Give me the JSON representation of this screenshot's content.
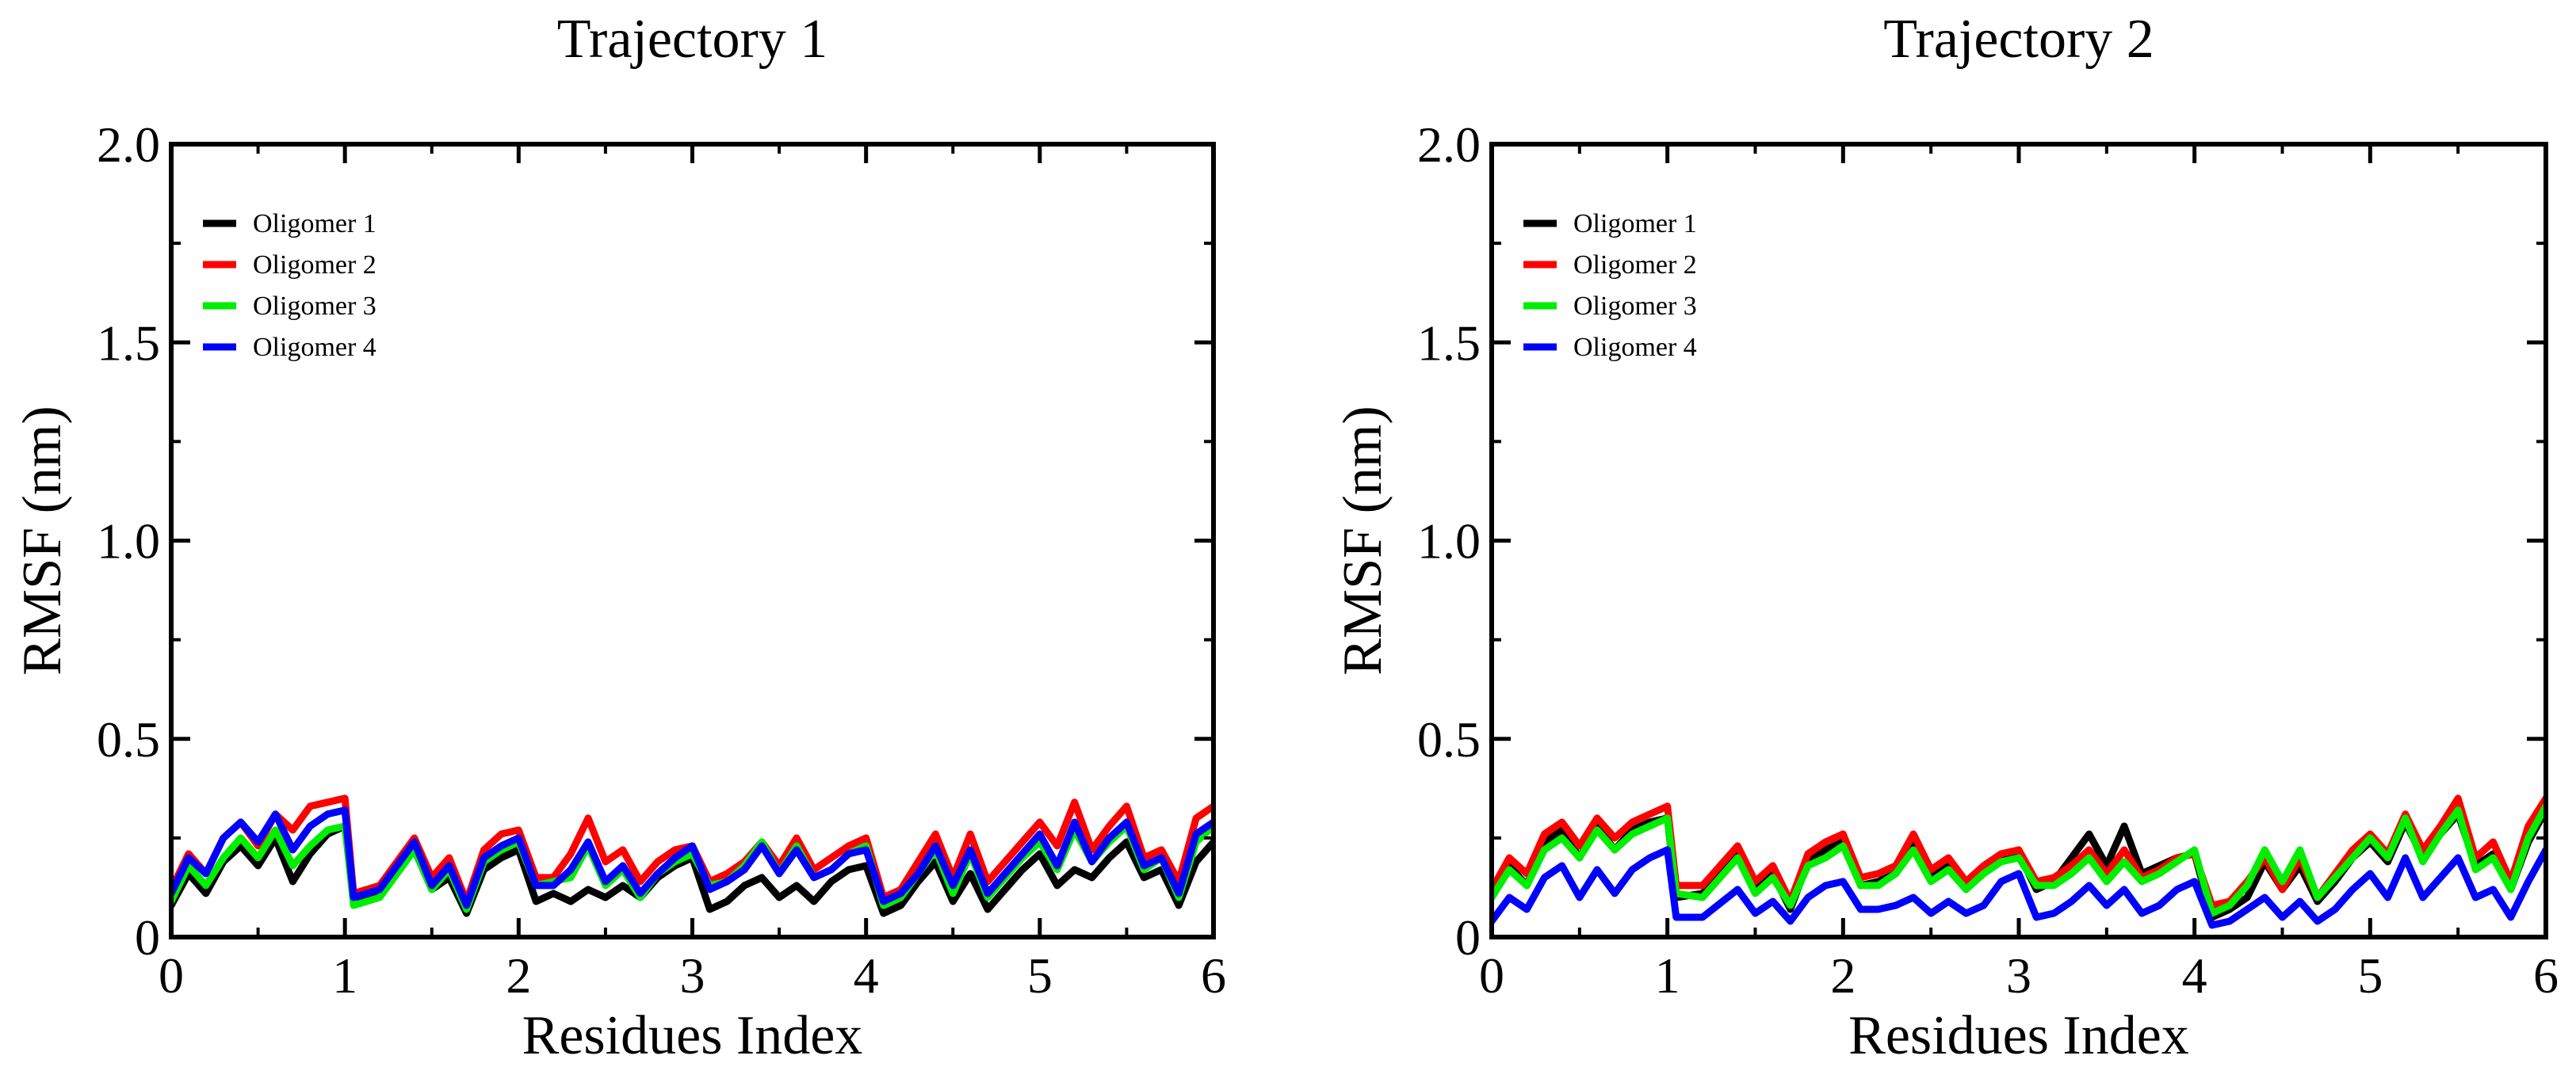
{
  "chart_data": [
    {
      "type": "line",
      "title": "Trajectory 1",
      "xlabel": "Residues Index",
      "ylabel": "RMSF (nm)",
      "xlim": [
        0,
        6
      ],
      "ylim": [
        0,
        2
      ],
      "x_ticks": [
        0,
        1,
        2,
        3,
        4,
        5,
        6
      ],
      "y_ticks": [
        0,
        0.5,
        1.0,
        1.5,
        2.0
      ],
      "x_tick_labels": [
        "0",
        "1",
        "2",
        "3",
        "4",
        "5",
        "6"
      ],
      "y_tick_labels": [
        "0",
        "0.5",
        "1.0",
        "1.5",
        "2.0"
      ],
      "legend_position": "top-left",
      "series": [
        {
          "name": "Oligomer 1",
          "color": "#000000",
          "x": [
            0,
            0.1,
            0.2,
            0.3,
            0.4,
            0.5,
            0.6,
            0.7,
            0.8,
            0.9,
            1.0,
            1.05,
            1.2,
            1.4,
            1.5,
            1.6,
            1.7,
            1.8,
            1.9,
            2.0,
            2.1,
            2.2,
            2.3,
            2.4,
            2.5,
            2.6,
            2.7,
            2.8,
            2.9,
            3.0,
            3.1,
            3.2,
            3.3,
            3.4,
            3.5,
            3.6,
            3.7,
            3.8,
            3.9,
            4.0,
            4.1,
            4.2,
            4.3,
            4.4,
            4.5,
            4.6,
            4.7,
            4.8,
            4.9,
            5.0,
            5.1,
            5.2,
            5.3,
            5.4,
            5.5,
            5.6,
            5.7,
            5.8,
            5.9,
            6.0
          ],
          "values": [
            0.08,
            0.16,
            0.11,
            0.19,
            0.23,
            0.18,
            0.25,
            0.14,
            0.21,
            0.26,
            0.28,
            0.09,
            0.11,
            0.22,
            0.12,
            0.15,
            0.06,
            0.17,
            0.2,
            0.22,
            0.09,
            0.11,
            0.09,
            0.12,
            0.1,
            0.13,
            0.1,
            0.15,
            0.18,
            0.2,
            0.07,
            0.09,
            0.13,
            0.15,
            0.1,
            0.13,
            0.09,
            0.14,
            0.17,
            0.18,
            0.06,
            0.08,
            0.14,
            0.19,
            0.09,
            0.16,
            0.07,
            0.12,
            0.17,
            0.21,
            0.13,
            0.17,
            0.15,
            0.2,
            0.24,
            0.15,
            0.17,
            0.08,
            0.19,
            0.24
          ]
        },
        {
          "name": "Oligomer 2",
          "color": "#ff0000",
          "x": [
            0,
            0.1,
            0.2,
            0.3,
            0.4,
            0.5,
            0.6,
            0.7,
            0.8,
            0.9,
            1.0,
            1.05,
            1.2,
            1.4,
            1.5,
            1.6,
            1.7,
            1.8,
            1.9,
            2.0,
            2.1,
            2.2,
            2.3,
            2.4,
            2.5,
            2.6,
            2.7,
            2.8,
            2.9,
            3.0,
            3.1,
            3.2,
            3.3,
            3.4,
            3.5,
            3.6,
            3.7,
            3.8,
            3.9,
            4.0,
            4.1,
            4.2,
            4.3,
            4.4,
            4.5,
            4.6,
            4.7,
            4.8,
            4.9,
            5.0,
            5.1,
            5.2,
            5.3,
            5.4,
            5.5,
            5.6,
            5.7,
            5.8,
            5.9,
            6.0
          ],
          "values": [
            0.12,
            0.21,
            0.16,
            0.25,
            0.29,
            0.23,
            0.31,
            0.27,
            0.33,
            0.34,
            0.35,
            0.11,
            0.13,
            0.25,
            0.15,
            0.2,
            0.09,
            0.22,
            0.26,
            0.27,
            0.15,
            0.15,
            0.21,
            0.3,
            0.19,
            0.22,
            0.14,
            0.19,
            0.22,
            0.23,
            0.14,
            0.16,
            0.19,
            0.24,
            0.18,
            0.25,
            0.17,
            0.2,
            0.23,
            0.25,
            0.1,
            0.12,
            0.19,
            0.26,
            0.15,
            0.26,
            0.14,
            0.19,
            0.24,
            0.29,
            0.23,
            0.34,
            0.22,
            0.28,
            0.33,
            0.2,
            0.22,
            0.14,
            0.3,
            0.33
          ]
        },
        {
          "name": "Oligomer 3",
          "color": "#00ee00",
          "x": [
            0,
            0.1,
            0.2,
            0.3,
            0.4,
            0.5,
            0.6,
            0.7,
            0.8,
            0.9,
            1.0,
            1.05,
            1.2,
            1.4,
            1.5,
            1.6,
            1.7,
            1.8,
            1.9,
            2.0,
            2.1,
            2.2,
            2.3,
            2.4,
            2.5,
            2.6,
            2.7,
            2.8,
            2.9,
            3.0,
            3.1,
            3.2,
            3.3,
            3.4,
            3.5,
            3.6,
            3.7,
            3.8,
            3.9,
            4.0,
            4.1,
            4.2,
            4.3,
            4.4,
            4.5,
            4.6,
            4.7,
            4.8,
            4.9,
            5.0,
            5.1,
            5.2,
            5.3,
            5.4,
            5.5,
            5.6,
            5.7,
            5.8,
            5.9,
            6.0
          ],
          "values": [
            0.09,
            0.18,
            0.13,
            0.2,
            0.25,
            0.2,
            0.27,
            0.18,
            0.23,
            0.27,
            0.28,
            0.08,
            0.1,
            0.22,
            0.12,
            0.17,
            0.07,
            0.19,
            0.22,
            0.24,
            0.13,
            0.14,
            0.15,
            0.23,
            0.13,
            0.17,
            0.1,
            0.16,
            0.19,
            0.21,
            0.13,
            0.14,
            0.18,
            0.24,
            0.16,
            0.23,
            0.15,
            0.17,
            0.21,
            0.23,
            0.08,
            0.1,
            0.16,
            0.22,
            0.11,
            0.21,
            0.1,
            0.15,
            0.2,
            0.24,
            0.17,
            0.27,
            0.19,
            0.24,
            0.28,
            0.17,
            0.2,
            0.1,
            0.24,
            0.28
          ]
        },
        {
          "name": "Oligomer 4",
          "color": "#0000ff",
          "x": [
            0,
            0.1,
            0.2,
            0.3,
            0.4,
            0.5,
            0.6,
            0.7,
            0.8,
            0.9,
            1.0,
            1.05,
            1.2,
            1.4,
            1.5,
            1.6,
            1.7,
            1.8,
            1.9,
            2.0,
            2.1,
            2.2,
            2.3,
            2.4,
            2.5,
            2.6,
            2.7,
            2.8,
            2.9,
            3.0,
            3.1,
            3.2,
            3.3,
            3.4,
            3.5,
            3.6,
            3.7,
            3.8,
            3.9,
            4.0,
            4.1,
            4.2,
            4.3,
            4.4,
            4.5,
            4.6,
            4.7,
            4.8,
            4.9,
            5.0,
            5.1,
            5.2,
            5.3,
            5.4,
            5.5,
            5.6,
            5.7,
            5.8,
            5.9,
            6.0
          ],
          "values": [
            0.11,
            0.2,
            0.16,
            0.25,
            0.29,
            0.24,
            0.31,
            0.22,
            0.28,
            0.31,
            0.32,
            0.1,
            0.12,
            0.24,
            0.13,
            0.18,
            0.08,
            0.2,
            0.23,
            0.25,
            0.13,
            0.13,
            0.17,
            0.24,
            0.14,
            0.18,
            0.11,
            0.16,
            0.2,
            0.23,
            0.12,
            0.14,
            0.17,
            0.23,
            0.16,
            0.22,
            0.15,
            0.17,
            0.21,
            0.22,
            0.09,
            0.11,
            0.16,
            0.23,
            0.13,
            0.22,
            0.11,
            0.16,
            0.21,
            0.26,
            0.18,
            0.29,
            0.19,
            0.25,
            0.29,
            0.18,
            0.2,
            0.11,
            0.26,
            0.29
          ]
        }
      ]
    },
    {
      "type": "line",
      "title": "Trajectory 2",
      "xlabel": "Residues Index",
      "ylabel": "RMSF (nm)",
      "xlim": [
        0,
        6
      ],
      "ylim": [
        0,
        2
      ],
      "x_ticks": [
        0,
        1,
        2,
        3,
        4,
        5,
        6
      ],
      "y_ticks": [
        0,
        0.5,
        1.0,
        1.5,
        2.0
      ],
      "x_tick_labels": [
        "0",
        "1",
        "2",
        "3",
        "4",
        "5",
        "6"
      ],
      "y_tick_labels": [
        "0",
        "0.5",
        "1.0",
        "1.5",
        "2.0"
      ],
      "legend_position": "top-left",
      "series": [
        {
          "name": "Oligomer 1",
          "color": "#000000",
          "x": [
            0,
            0.1,
            0.2,
            0.3,
            0.4,
            0.5,
            0.6,
            0.7,
            0.8,
            0.9,
            1.0,
            1.05,
            1.2,
            1.4,
            1.5,
            1.6,
            1.7,
            1.8,
            1.9,
            2.0,
            2.1,
            2.2,
            2.3,
            2.4,
            2.5,
            2.6,
            2.7,
            2.8,
            2.9,
            3.0,
            3.1,
            3.2,
            3.3,
            3.4,
            3.5,
            3.6,
            3.7,
            3.8,
            3.9,
            4.0,
            4.1,
            4.2,
            4.3,
            4.4,
            4.5,
            4.6,
            4.7,
            4.8,
            4.9,
            5.0,
            5.1,
            5.2,
            5.3,
            5.4,
            5.5,
            5.6,
            5.7,
            5.8,
            5.9,
            6.0
          ],
          "values": [
            0.1,
            0.18,
            0.13,
            0.24,
            0.27,
            0.2,
            0.28,
            0.22,
            0.27,
            0.29,
            0.3,
            0.1,
            0.11,
            0.21,
            0.12,
            0.16,
            0.07,
            0.19,
            0.22,
            0.24,
            0.13,
            0.14,
            0.16,
            0.24,
            0.15,
            0.19,
            0.12,
            0.17,
            0.2,
            0.21,
            0.12,
            0.14,
            0.2,
            0.26,
            0.18,
            0.28,
            0.16,
            0.18,
            0.2,
            0.21,
            0.05,
            0.07,
            0.1,
            0.19,
            0.12,
            0.18,
            0.09,
            0.14,
            0.2,
            0.24,
            0.19,
            0.29,
            0.2,
            0.26,
            0.31,
            0.18,
            0.21,
            0.12,
            0.24,
            0.32
          ]
        },
        {
          "name": "Oligomer 2",
          "color": "#ff0000",
          "x": [
            0,
            0.1,
            0.2,
            0.3,
            0.4,
            0.5,
            0.6,
            0.7,
            0.8,
            0.9,
            1.0,
            1.05,
            1.2,
            1.4,
            1.5,
            1.6,
            1.7,
            1.8,
            1.9,
            2.0,
            2.1,
            2.2,
            2.3,
            2.4,
            2.5,
            2.6,
            2.7,
            2.8,
            2.9,
            3.0,
            3.1,
            3.2,
            3.3,
            3.4,
            3.5,
            3.6,
            3.7,
            3.8,
            3.9,
            4.0,
            4.1,
            4.2,
            4.3,
            4.4,
            4.5,
            4.6,
            4.7,
            4.8,
            4.9,
            5.0,
            5.1,
            5.2,
            5.3,
            5.4,
            5.5,
            5.6,
            5.7,
            5.8,
            5.9,
            6.0
          ],
          "values": [
            0.12,
            0.2,
            0.16,
            0.26,
            0.29,
            0.23,
            0.3,
            0.25,
            0.29,
            0.31,
            0.33,
            0.13,
            0.13,
            0.23,
            0.14,
            0.18,
            0.09,
            0.21,
            0.24,
            0.26,
            0.15,
            0.16,
            0.18,
            0.26,
            0.17,
            0.2,
            0.14,
            0.18,
            0.21,
            0.22,
            0.14,
            0.15,
            0.18,
            0.22,
            0.16,
            0.22,
            0.15,
            0.17,
            0.2,
            0.21,
            0.08,
            0.09,
            0.14,
            0.2,
            0.12,
            0.2,
            0.1,
            0.16,
            0.22,
            0.26,
            0.21,
            0.31,
            0.22,
            0.28,
            0.35,
            0.2,
            0.24,
            0.14,
            0.28,
            0.35
          ]
        },
        {
          "name": "Oligomer 3",
          "color": "#00ee00",
          "x": [
            0,
            0.1,
            0.2,
            0.3,
            0.4,
            0.5,
            0.6,
            0.7,
            0.8,
            0.9,
            1.0,
            1.05,
            1.2,
            1.4,
            1.5,
            1.6,
            1.7,
            1.8,
            1.9,
            2.0,
            2.1,
            2.2,
            2.3,
            2.4,
            2.5,
            2.6,
            2.7,
            2.8,
            2.9,
            3.0,
            3.1,
            3.2,
            3.3,
            3.4,
            3.5,
            3.6,
            3.7,
            3.8,
            3.9,
            4.0,
            4.1,
            4.2,
            4.3,
            4.4,
            4.5,
            4.6,
            4.7,
            4.8,
            4.9,
            5.0,
            5.1,
            5.2,
            5.3,
            5.4,
            5.5,
            5.6,
            5.7,
            5.8,
            5.9,
            6.0
          ],
          "values": [
            0.1,
            0.17,
            0.13,
            0.22,
            0.25,
            0.2,
            0.27,
            0.22,
            0.26,
            0.28,
            0.3,
            0.11,
            0.1,
            0.2,
            0.11,
            0.15,
            0.08,
            0.18,
            0.2,
            0.23,
            0.13,
            0.13,
            0.16,
            0.22,
            0.14,
            0.17,
            0.12,
            0.16,
            0.19,
            0.2,
            0.13,
            0.13,
            0.16,
            0.2,
            0.14,
            0.19,
            0.14,
            0.16,
            0.19,
            0.22,
            0.06,
            0.08,
            0.13,
            0.22,
            0.14,
            0.22,
            0.1,
            0.15,
            0.2,
            0.25,
            0.2,
            0.3,
            0.19,
            0.26,
            0.32,
            0.17,
            0.2,
            0.12,
            0.25,
            0.33
          ]
        },
        {
          "name": "Oligomer 4",
          "color": "#0000ff",
          "x": [
            0,
            0.1,
            0.2,
            0.3,
            0.4,
            0.5,
            0.6,
            0.7,
            0.8,
            0.9,
            1.0,
            1.05,
            1.2,
            1.4,
            1.5,
            1.6,
            1.7,
            1.8,
            1.9,
            2.0,
            2.1,
            2.2,
            2.3,
            2.4,
            2.5,
            2.6,
            2.7,
            2.8,
            2.9,
            3.0,
            3.1,
            3.2,
            3.3,
            3.4,
            3.5,
            3.6,
            3.7,
            3.8,
            3.9,
            4.0,
            4.1,
            4.2,
            4.3,
            4.4,
            4.5,
            4.6,
            4.7,
            4.8,
            4.9,
            5.0,
            5.1,
            5.2,
            5.3,
            5.4,
            5.5,
            5.6,
            5.7,
            5.8,
            5.9,
            6.0
          ],
          "values": [
            0.04,
            0.1,
            0.07,
            0.15,
            0.18,
            0.1,
            0.17,
            0.11,
            0.17,
            0.2,
            0.22,
            0.05,
            0.05,
            0.12,
            0.06,
            0.09,
            0.04,
            0.1,
            0.13,
            0.14,
            0.07,
            0.07,
            0.08,
            0.1,
            0.06,
            0.09,
            0.06,
            0.08,
            0.14,
            0.16,
            0.05,
            0.06,
            0.09,
            0.13,
            0.08,
            0.12,
            0.06,
            0.08,
            0.12,
            0.14,
            0.03,
            0.04,
            0.07,
            0.1,
            0.05,
            0.09,
            0.04,
            0.07,
            0.12,
            0.16,
            0.1,
            0.2,
            0.1,
            0.15,
            0.2,
            0.1,
            0.12,
            0.05,
            0.14,
            0.22
          ]
        }
      ]
    }
  ]
}
